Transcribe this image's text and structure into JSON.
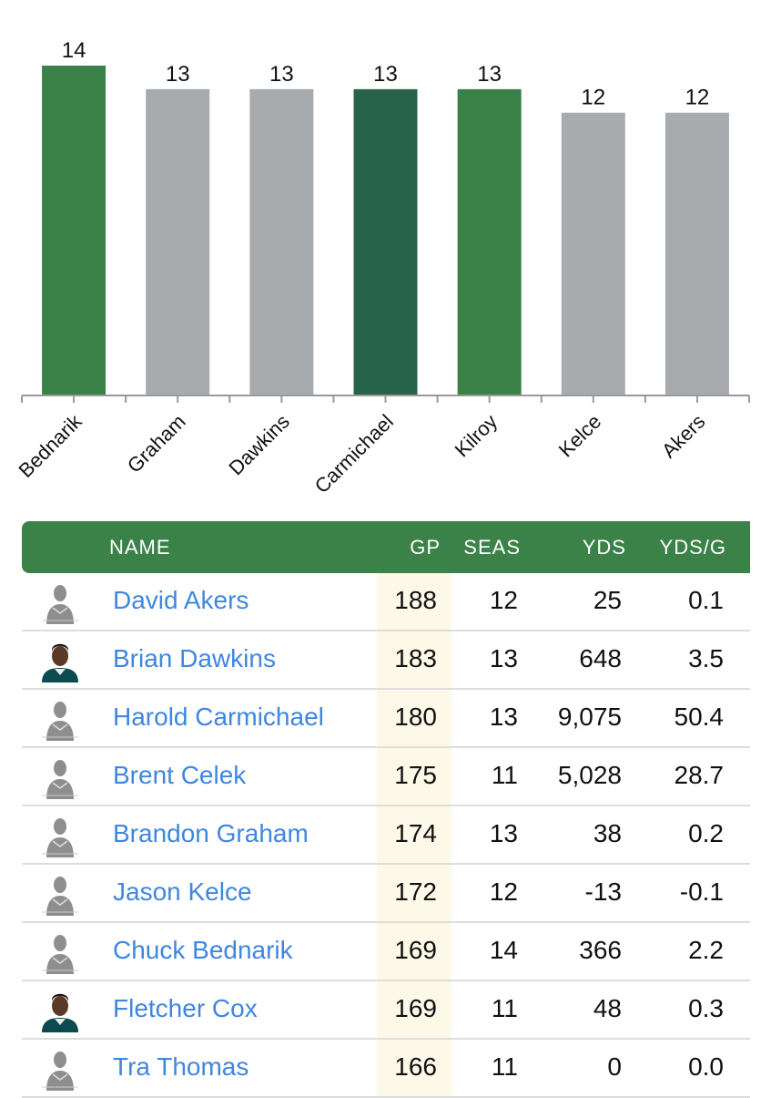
{
  "chart_data": {
    "type": "bar",
    "categories": [
      "Bednarik",
      "Graham",
      "Dawkins",
      "Carmichael",
      "Kilroy",
      "Kelce",
      "Akers"
    ],
    "values": [
      14,
      13,
      13,
      13,
      13,
      12,
      12
    ],
    "colors": [
      "#3a8247",
      "#a7abae",
      "#a7abae",
      "#27634a",
      "#3a8247",
      "#a7abae",
      "#a7abae"
    ],
    "ylim": [
      0,
      14
    ],
    "title": "",
    "xlabel": "",
    "ylabel": ""
  },
  "table": {
    "headers": {
      "name": "NAME",
      "gp": "GP",
      "seas": "SEAS",
      "yds": "YDS",
      "ydsg": "YDS/G"
    },
    "rows": [
      {
        "name": "David Akers",
        "gp": "188",
        "seas": "12",
        "yds": "25",
        "ydsg": "0.1",
        "avatar": "placeholder"
      },
      {
        "name": "Brian Dawkins",
        "gp": "183",
        "seas": "13",
        "yds": "648",
        "ydsg": "3.5",
        "avatar": "photo"
      },
      {
        "name": "Harold Carmichael",
        "gp": "180",
        "seas": "13",
        "yds": "9,075",
        "ydsg": "50.4",
        "avatar": "placeholder"
      },
      {
        "name": "Brent Celek",
        "gp": "175",
        "seas": "11",
        "yds": "5,028",
        "ydsg": "28.7",
        "avatar": "placeholder"
      },
      {
        "name": "Brandon Graham",
        "gp": "174",
        "seas": "13",
        "yds": "38",
        "ydsg": "0.2",
        "avatar": "placeholder"
      },
      {
        "name": "Jason Kelce",
        "gp": "172",
        "seas": "12",
        "yds": "-13",
        "ydsg": "-0.1",
        "avatar": "placeholder"
      },
      {
        "name": "Chuck Bednarik",
        "gp": "169",
        "seas": "14",
        "yds": "366",
        "ydsg": "2.2",
        "avatar": "placeholder"
      },
      {
        "name": "Fletcher Cox",
        "gp": "169",
        "seas": "11",
        "yds": "48",
        "ydsg": "0.3",
        "avatar": "photo"
      },
      {
        "name": "Tra Thomas",
        "gp": "166",
        "seas": "11",
        "yds": "0",
        "ydsg": "0.0",
        "avatar": "placeholder"
      }
    ]
  }
}
